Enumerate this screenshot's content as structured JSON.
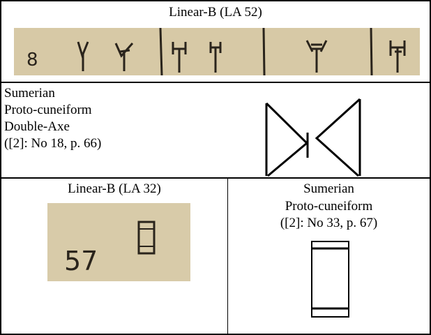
{
  "table": {
    "rows": [
      {
        "cells": [
          {
            "title": "Linear-B (LA 52)",
            "image_label": "8"
          }
        ]
      },
      {
        "cells": [
          {
            "lines": [
              "Sumerian",
              "Proto-cuneiform",
              "Double-Axe",
              "([2]: No 18, p. 66)"
            ]
          }
        ]
      },
      {
        "cells": [
          {
            "title": "Linear-B (LA 32)",
            "image_label": "57"
          },
          {
            "lines": [
              "Sumerian",
              "Proto-cuneiform",
              "([2]: No 33, p. 67)"
            ]
          }
        ]
      }
    ]
  }
}
